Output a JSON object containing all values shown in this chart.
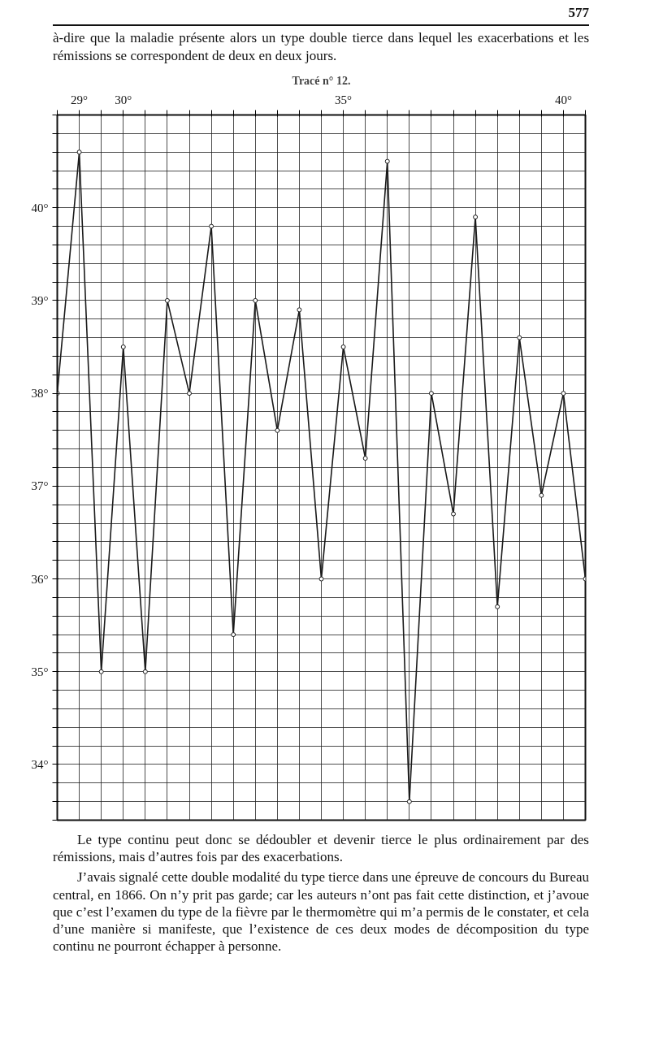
{
  "chart_data": {
    "type": "line",
    "title": "Tracé n° 12.",
    "subtitle": "à-dire que la maladie présente alors un type double tierce dans lequel les exacerbations et les rémissions se correspondent de deux en deux jours.",
    "annotations": [
      "577",
      "Le type continu peut donc se dédoubler et devenir tierce le plus ordinairement par des rémissions, mais d’autres fois par des exacerbations.",
      "J’avais signalé cette double modalité du type tierce dans une épreuve de concours du Bureau central, en 1866. On n’y prit pas garde; car les auteurs n’ont pas fait cette distinction, et j’avoue que c’est l’examen du type de la fièvre par le thermomètre qui m’a permis de le constater, et cela d’une manière si manifeste, que l’existence de ces deux modes de décomposition du type continu ne pourront échapper à personne."
    ],
    "x": [
      29,
      29.5,
      30,
      30.5,
      31,
      31.5,
      32,
      32.5,
      33,
      33.5,
      34,
      34.5,
      35,
      35.5,
      36,
      36.5,
      37,
      37.5,
      38,
      38.5,
      39,
      39.5,
      40,
      40.5,
      41
    ],
    "series": [
      {
        "color": "#1a1a1a",
        "values": [
          38.0,
          40.6,
          35.0,
          38.5,
          35.0,
          39.0,
          38.0,
          39.8,
          35.4,
          39.0,
          37.6,
          38.9,
          36.0,
          38.5,
          37.3,
          40.5,
          33.6,
          38.0,
          36.7,
          39.9,
          35.7,
          38.6,
          36.9,
          38.0,
          36.0
        ]
      }
    ],
    "xlim": [
      29,
      41
    ],
    "ylim": [
      33.4,
      41.0
    ],
    "xticks": [
      {
        "value": 29,
        "label": null
      },
      {
        "value": 29.5,
        "label": "29°"
      },
      {
        "value": 30,
        "label": null
      },
      {
        "value": 30.5,
        "label": "30°"
      },
      {
        "value": 31,
        "label": null
      },
      {
        "value": 31.5,
        "label": null
      },
      {
        "value": 32,
        "label": null
      },
      {
        "value": 32.5,
        "label": null
      },
      {
        "value": 33,
        "label": null
      },
      {
        "value": 33.5,
        "label": null
      },
      {
        "value": 34,
        "label": null
      },
      {
        "value": 34.5,
        "label": null
      },
      {
        "value": 35,
        "label": null
      },
      {
        "value": 35.5,
        "label": "35°"
      },
      {
        "value": 36,
        "label": null
      },
      {
        "value": 36.5,
        "label": null
      },
      {
        "value": 37,
        "label": null
      },
      {
        "value": 37.5,
        "label": null
      },
      {
        "value": 38,
        "label": null
      },
      {
        "value": 38.5,
        "label": null
      },
      {
        "value": 39,
        "label": null
      },
      {
        "value": 39.5,
        "label": null
      },
      {
        "value": 40,
        "label": null
      },
      {
        "value": 40.5,
        "label": "40°"
      },
      {
        "value": 41,
        "label": null
      }
    ],
    "yticks": [
      {
        "value": 33.4,
        "label": null
      },
      {
        "value": 33.6,
        "label": null
      },
      {
        "value": 33.8,
        "label": null
      },
      {
        "value": 34,
        "label": "34°"
      },
      {
        "value": 34.2,
        "label": null
      },
      {
        "value": 34.4,
        "label": null
      },
      {
        "value": 34.6,
        "label": null
      },
      {
        "value": 34.8,
        "label": null
      },
      {
        "value": 35,
        "label": "35°"
      },
      {
        "value": 35.2,
        "label": null
      },
      {
        "value": 35.4,
        "label": null
      },
      {
        "value": 35.6,
        "label": null
      },
      {
        "value": 35.8,
        "label": null
      },
      {
        "value": 36,
        "label": "36°"
      },
      {
        "value": 36.2,
        "label": null
      },
      {
        "value": 36.4,
        "label": null
      },
      {
        "value": 36.6,
        "label": null
      },
      {
        "value": 36.8,
        "label": null
      },
      {
        "value": 37,
        "label": "37°"
      },
      {
        "value": 37.2,
        "label": null
      },
      {
        "value": 37.4,
        "label": null
      },
      {
        "value": 37.6,
        "label": null
      },
      {
        "value": 37.8,
        "label": null
      },
      {
        "value": 38,
        "label": "38°"
      },
      {
        "value": 38.2,
        "label": null
      },
      {
        "value": 38.4,
        "label": null
      },
      {
        "value": 38.6,
        "label": null
      },
      {
        "value": 38.8,
        "label": null
      },
      {
        "value": 39,
        "label": "39°"
      },
      {
        "value": 39.2,
        "label": null
      },
      {
        "value": 39.4,
        "label": null
      },
      {
        "value": 39.6,
        "label": null
      },
      {
        "value": 39.8,
        "label": null
      },
      {
        "value": 40,
        "label": "40°"
      },
      {
        "value": 40.2,
        "label": null
      },
      {
        "value": 40.4,
        "label": null
      },
      {
        "value": 40.6,
        "label": null
      },
      {
        "value": 40.8,
        "label": null
      },
      {
        "value": 41,
        "label": null
      }
    ],
    "grid": true,
    "marker": "circle",
    "line_style": "solid"
  }
}
